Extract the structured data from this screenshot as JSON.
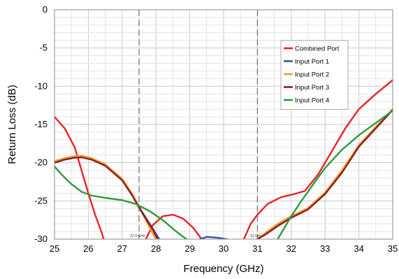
{
  "chart_data": {
    "type": "line",
    "title": "",
    "xlabel": "Frequency (GHz)",
    "ylabel": "Return Loss (dB)",
    "xlim": [
      25,
      35
    ],
    "ylim": [
      -30,
      0
    ],
    "x_ticks": [
      25,
      26,
      27,
      28,
      29,
      30,
      31,
      32,
      33,
      34,
      35
    ],
    "y_ticks": [
      0,
      -5,
      -10,
      -15,
      -20,
      -25,
      -30
    ],
    "grid": true,
    "legend_position": "top-right",
    "markers": [
      {
        "x": 27.5,
        "label": "27.5 GHz"
      },
      {
        "x": 31,
        "label": "31 GHz"
      }
    ],
    "series": [
      {
        "name": "Combined Port",
        "color": "#e8232a",
        "segments": [
          [
            [
              25,
              -14
            ],
            [
              25.3,
              -15.5
            ],
            [
              25.6,
              -18
            ],
            [
              25.8,
              -21
            ],
            [
              26,
              -24
            ],
            [
              26.2,
              -26.8
            ],
            [
              26.4,
              -29.2
            ],
            [
              26.45,
              -30
            ]
          ],
          [
            [
              27.7,
              -30
            ],
            [
              27.9,
              -28.2
            ],
            [
              28.2,
              -27
            ],
            [
              28.5,
              -26.8
            ],
            [
              28.8,
              -27.3
            ],
            [
              29.1,
              -28.5
            ],
            [
              29.35,
              -30
            ]
          ],
          [
            [
              30.6,
              -30
            ],
            [
              30.8,
              -28
            ],
            [
              31,
              -26.8
            ],
            [
              31.3,
              -25.4
            ],
            [
              31.7,
              -24.5
            ],
            [
              32,
              -24.2
            ],
            [
              32.4,
              -23.7
            ],
            [
              32.8,
              -21.5
            ],
            [
              33.2,
              -18.5
            ],
            [
              33.6,
              -15.5
            ],
            [
              34,
              -13
            ],
            [
              34.5,
              -11
            ],
            [
              35,
              -9.2
            ]
          ]
        ]
      },
      {
        "name": "Input Port 1",
        "color": "#3b55a6",
        "segments": [
          [
            [
              25,
              -19.9
            ],
            [
              25.3,
              -19.5
            ],
            [
              25.6,
              -19.25
            ],
            [
              25.8,
              -19.2
            ],
            [
              26.1,
              -19.5
            ],
            [
              26.5,
              -20.3
            ],
            [
              27,
              -22.2
            ],
            [
              27.3,
              -24.2
            ],
            [
              27.6,
              -26.5
            ],
            [
              27.9,
              -28.6
            ],
            [
              28.1,
              -30
            ]
          ],
          [
            [
              29.3,
              -30
            ],
            [
              29.5,
              -29.7
            ],
            [
              29.8,
              -29.8
            ],
            [
              30.1,
              -30
            ]
          ],
          [
            [
              31,
              -30
            ],
            [
              31.2,
              -29.4
            ],
            [
              31.6,
              -28.2
            ],
            [
              32,
              -27.1
            ],
            [
              32.5,
              -26
            ],
            [
              33,
              -24
            ],
            [
              33.5,
              -21.2
            ],
            [
              34,
              -17.8
            ],
            [
              34.5,
              -15.4
            ],
            [
              35,
              -13
            ]
          ]
        ]
      },
      {
        "name": "Input Port 2",
        "color": "#f29b2e",
        "segments": [
          [
            [
              25,
              -19.8
            ],
            [
              25.3,
              -19.4
            ],
            [
              25.6,
              -19.15
            ],
            [
              25.8,
              -19.1
            ],
            [
              26.1,
              -19.4
            ],
            [
              26.5,
              -20.2
            ],
            [
              27,
              -22.1
            ],
            [
              27.3,
              -24.1
            ],
            [
              27.6,
              -26.6
            ],
            [
              27.85,
              -28.8
            ],
            [
              28,
              -30
            ]
          ],
          [
            [
              31,
              -30
            ],
            [
              31.2,
              -29.3
            ],
            [
              31.6,
              -28
            ],
            [
              32,
              -27
            ],
            [
              32.5,
              -25.9
            ],
            [
              33,
              -23.9
            ],
            [
              33.5,
              -21
            ],
            [
              34,
              -17.7
            ],
            [
              34.5,
              -15.3
            ],
            [
              35,
              -13
            ]
          ]
        ]
      },
      {
        "name": "Input Port 3",
        "color": "#8b1e1e",
        "segments": [
          [
            [
              25,
              -20
            ],
            [
              25.3,
              -19.6
            ],
            [
              25.6,
              -19.35
            ],
            [
              25.8,
              -19.3
            ],
            [
              26.1,
              -19.6
            ],
            [
              26.5,
              -20.4
            ],
            [
              27,
              -22.3
            ],
            [
              27.3,
              -24.3
            ],
            [
              27.6,
              -26.6
            ],
            [
              27.9,
              -28.7
            ],
            [
              28.05,
              -30
            ]
          ],
          [
            [
              31,
              -30
            ],
            [
              31.2,
              -29.5
            ],
            [
              31.6,
              -28.3
            ],
            [
              32,
              -27.2
            ],
            [
              32.5,
              -26.1
            ],
            [
              33,
              -24.1
            ],
            [
              33.5,
              -21.3
            ],
            [
              34,
              -17.9
            ],
            [
              34.5,
              -15.5
            ],
            [
              35,
              -13.1
            ]
          ]
        ]
      },
      {
        "name": "Input Port 4",
        "color": "#2e9a3e",
        "segments": [
          [
            [
              25,
              -20.5
            ],
            [
              25.2,
              -21.5
            ],
            [
              25.5,
              -22.8
            ],
            [
              25.8,
              -23.8
            ],
            [
              26.1,
              -24.3
            ],
            [
              26.5,
              -24.6
            ],
            [
              27,
              -24.9
            ],
            [
              27.4,
              -25.4
            ],
            [
              27.8,
              -26.3
            ],
            [
              28.2,
              -27.5
            ],
            [
              28.6,
              -29
            ],
            [
              28.9,
              -30
            ]
          ],
          [
            [
              31.6,
              -30
            ],
            [
              31.8,
              -28.5
            ],
            [
              32,
              -27
            ],
            [
              32.3,
              -25
            ],
            [
              32.7,
              -22.5
            ],
            [
              33,
              -20.7
            ],
            [
              33.5,
              -18.3
            ],
            [
              34,
              -16.4
            ],
            [
              34.5,
              -14.8
            ],
            [
              35,
              -13.2
            ]
          ]
        ]
      }
    ]
  }
}
